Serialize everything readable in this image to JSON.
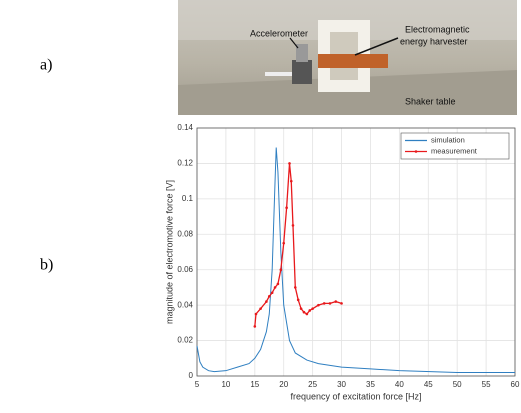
{
  "figure_labels": [
    "a)",
    "b)"
  ],
  "photo": {
    "labels": [
      "Accelerometer",
      "Electromagnetic",
      "energy harvester",
      "Shaker table"
    ]
  },
  "chart_data": {
    "type": "line",
    "x_label": "frequency of excitation force [Hz]",
    "y_label": "magnitude of electromotive force [V]",
    "xlim": [
      5,
      60
    ],
    "xticks": [
      5,
      10,
      15,
      20,
      25,
      30,
      35,
      40,
      45,
      50,
      55,
      60
    ],
    "ylim": [
      0,
      0.14
    ],
    "yticks": [
      0,
      0.02,
      0.04,
      0.06,
      0.08,
      0.1,
      0.12,
      0.14
    ],
    "grid": true,
    "legend": "upper right",
    "series": [
      {
        "name": "simulation",
        "color": "#2f7fc1",
        "marker": false,
        "x": [
          5,
          5.5,
          6,
          7,
          8,
          10,
          12,
          14,
          15,
          16,
          17,
          17.5,
          18,
          18.5,
          18.7,
          19,
          19.5,
          20,
          21,
          22,
          24,
          26,
          30,
          35,
          40,
          50,
          60
        ],
        "values": [
          0.017,
          0.008,
          0.005,
          0.003,
          0.0025,
          0.003,
          0.005,
          0.007,
          0.01,
          0.015,
          0.025,
          0.035,
          0.06,
          0.11,
          0.129,
          0.115,
          0.07,
          0.04,
          0.02,
          0.013,
          0.009,
          0.007,
          0.005,
          0.004,
          0.003,
          0.002,
          0.002
        ]
      },
      {
        "name": "measurement",
        "color": "#e8191c",
        "marker": true,
        "x": [
          15,
          15.2,
          16,
          17,
          17.5,
          18,
          18.5,
          19,
          19.5,
          20,
          20.5,
          21,
          21.3,
          21.6,
          22,
          22.5,
          23,
          23.5,
          24,
          24.5,
          25,
          26,
          27,
          28,
          29,
          30
        ],
        "values": [
          0.028,
          0.035,
          0.038,
          0.042,
          0.045,
          0.047,
          0.05,
          0.052,
          0.06,
          0.075,
          0.095,
          0.12,
          0.11,
          0.085,
          0.05,
          0.043,
          0.038,
          0.036,
          0.035,
          0.037,
          0.038,
          0.04,
          0.041,
          0.041,
          0.042,
          0.041
        ]
      }
    ]
  }
}
